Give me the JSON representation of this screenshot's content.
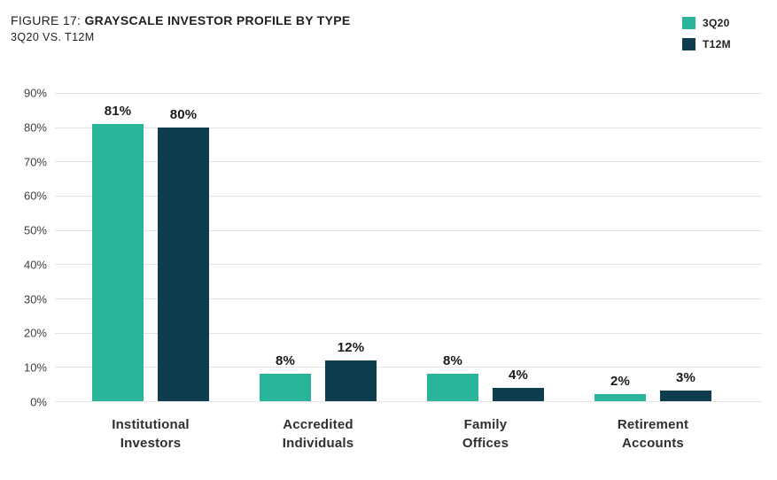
{
  "header": {
    "figure_label": "FIGURE 17:",
    "title": "GRAYSCALE INVESTOR PROFILE BY TYPE",
    "subtitle": "3Q20 VS. T12M"
  },
  "chart_data": {
    "type": "bar",
    "title": "FIGURE 17: GRAYSCALE INVESTOR PROFILE BY TYPE",
    "subtitle": "3Q20 VS. T12M",
    "categories": [
      {
        "line1": "Institutional",
        "line2": "Investors"
      },
      {
        "line1": "Accredited",
        "line2": "Individuals"
      },
      {
        "line1": "Family",
        "line2": "Offices"
      },
      {
        "line1": "Retirement",
        "line2": "Accounts"
      }
    ],
    "series": [
      {
        "name": "3Q20",
        "color": "#2ab59b",
        "values": [
          81,
          8,
          8,
          2
        ],
        "labels": [
          "81%",
          "8%",
          "8%",
          "2%"
        ]
      },
      {
        "name": "T12M",
        "color": "#0e3d4e",
        "values": [
          80,
          12,
          4,
          3
        ],
        "labels": [
          "80%",
          "12%",
          "4%",
          "3%"
        ]
      }
    ],
    "y_ticks": [
      "90%",
      "80%",
      "70%",
      "60%",
      "50%",
      "40%",
      "30%",
      "20%",
      "10%",
      "0%"
    ],
    "ylim": [
      0,
      90
    ],
    "grid": true,
    "legend_position": "top-right",
    "xlabel": "",
    "ylabel": ""
  },
  "colors": {
    "grid": "#e4e4e4",
    "tick_text": "#414042",
    "title_text": "#231f20"
  }
}
